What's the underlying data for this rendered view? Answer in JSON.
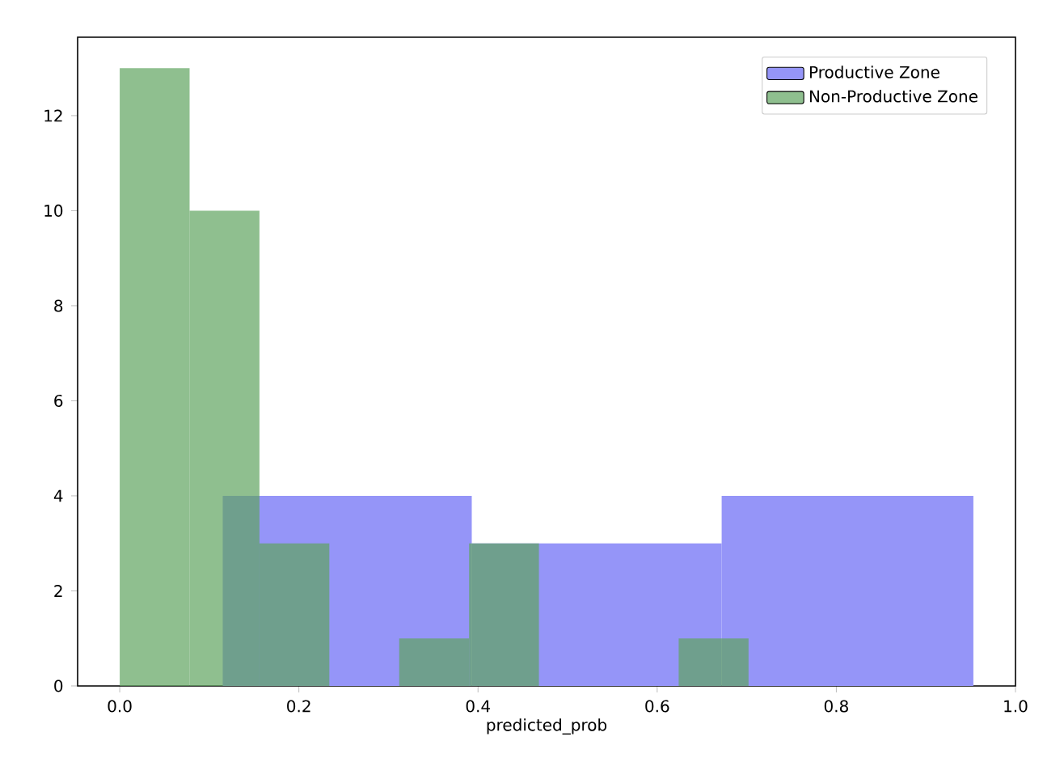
{
  "chart_data": {
    "type": "histogram",
    "bins": [
      0,
      0.078,
      0.156,
      0.234,
      0.312,
      0.39,
      0.468,
      0.546,
      0.624,
      0.702
    ],
    "xlabel": "predicted_prob",
    "xlim": [
      -0.047,
      1.0
    ],
    "ylim": [
      0,
      13.65
    ],
    "xticks": [
      {
        "value": 0,
        "label": "0.0"
      },
      {
        "value": 0.2,
        "label": "0.2"
      },
      {
        "value": 0.4,
        "label": "0.4"
      },
      {
        "value": 0.6,
        "label": "0.6"
      },
      {
        "value": 0.8,
        "label": "0.8"
      },
      {
        "value": 1.0,
        "label": "1.0"
      }
    ],
    "yticks": [
      {
        "value": 0,
        "label": "0"
      },
      {
        "value": 2,
        "label": "2"
      },
      {
        "value": 4,
        "label": "4"
      },
      {
        "value": 6,
        "label": "6"
      },
      {
        "value": 8,
        "label": "8"
      },
      {
        "value": 10,
        "label": "10"
      },
      {
        "value": 12,
        "label": "12"
      }
    ],
    "grid": false,
    "legend": "top right",
    "series": [
      {
        "name": "Productive Zone",
        "color": "#9595f8",
        "bins": [
          0.115,
          0.393,
          0.672,
          0.953
        ],
        "values": [
          4,
          3,
          4
        ]
      },
      {
        "name": "Non-Productive Zone",
        "color": "#8fbf8f",
        "values": [
          13,
          10,
          3,
          0,
          1,
          3,
          0,
          0,
          1
        ]
      }
    ]
  }
}
